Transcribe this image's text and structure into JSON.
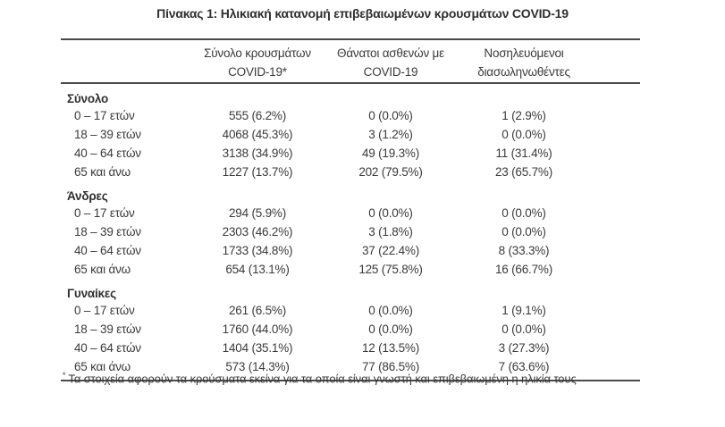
{
  "title": "Πίνακας 1: Ηλικιακή κατανομή επιβεβαιωμένων κρουσμάτων COVID-19",
  "colors": {
    "text": "#3a3a3a",
    "bold_text": "#2f2f2f",
    "line": "#4a4a4a",
    "background": "#ffffff"
  },
  "table": {
    "headers": [
      {
        "line1": "Σύνολο κρουσμάτων",
        "line2": "COVID-19*"
      },
      {
        "line1": "Θάνατοι ασθενών με",
        "line2": "COVID-19"
      },
      {
        "line1": "Νοσηλευόμενοι",
        "line2": "διασωληνωθέντες"
      }
    ],
    "sections": [
      {
        "label": "Σύνολο",
        "rows": [
          {
            "label": "0 – 17 ετών",
            "cases": "555 (6.2%)",
            "deaths": "0 (0.0%)",
            "intubated": "1 (2.9%)"
          },
          {
            "label": "18 – 39 ετών",
            "cases": "4068 (45.3%)",
            "deaths": "3 (1.2%)",
            "intubated": "0 (0.0%)"
          },
          {
            "label": "40 – 64 ετών",
            "cases": "3138 (34.9%)",
            "deaths": "49 (19.3%)",
            "intubated": "11 (31.4%)"
          },
          {
            "label": "65 και άνω",
            "cases": "1227 (13.7%)",
            "deaths": "202 (79.5%)",
            "intubated": "23 (65.7%)"
          }
        ]
      },
      {
        "label": "Άνδρες",
        "rows": [
          {
            "label": "0 – 17 ετών",
            "cases": "294 (5.9%)",
            "deaths": "0 (0.0%)",
            "intubated": "0 (0.0%)"
          },
          {
            "label": "18 – 39 ετών",
            "cases": "2303 (46.2%)",
            "deaths": "3 (1.8%)",
            "intubated": "0 (0.0%)"
          },
          {
            "label": "40 – 64 ετών",
            "cases": "1733 (34.8%)",
            "deaths": "37 (22.4%)",
            "intubated": "8 (33.3%)"
          },
          {
            "label": "65 και άνω",
            "cases": "654 (13.1%)",
            "deaths": "125 (75.8%)",
            "intubated": "16 (66.7%)"
          }
        ]
      },
      {
        "label": "Γυναίκες",
        "rows": [
          {
            "label": "0 – 17 ετών",
            "cases": "261 (6.5%)",
            "deaths": "0 (0.0%)",
            "intubated": "1 (9.1%)"
          },
          {
            "label": "18 – 39 ετών",
            "cases": "1760 (44.0%)",
            "deaths": "0 (0.0%)",
            "intubated": "0 (0.0%)"
          },
          {
            "label": "40 – 64 ετών",
            "cases": "1404 (35.1%)",
            "deaths": "12 (13.5%)",
            "intubated": "3 (27.3%)"
          },
          {
            "label": "65 και άνω",
            "cases": "573 (14.3%)",
            "deaths": "77 (86.5%)",
            "intubated": "7 (63.6%)"
          }
        ]
      }
    ]
  },
  "footnote": {
    "marker": "*",
    "text": "Τα στοιχεία αφορούν τα κρούσματα εκείνα για τα οποία είναι γνωστή και επιβεβαιωμένη η ηλικία τους"
  }
}
